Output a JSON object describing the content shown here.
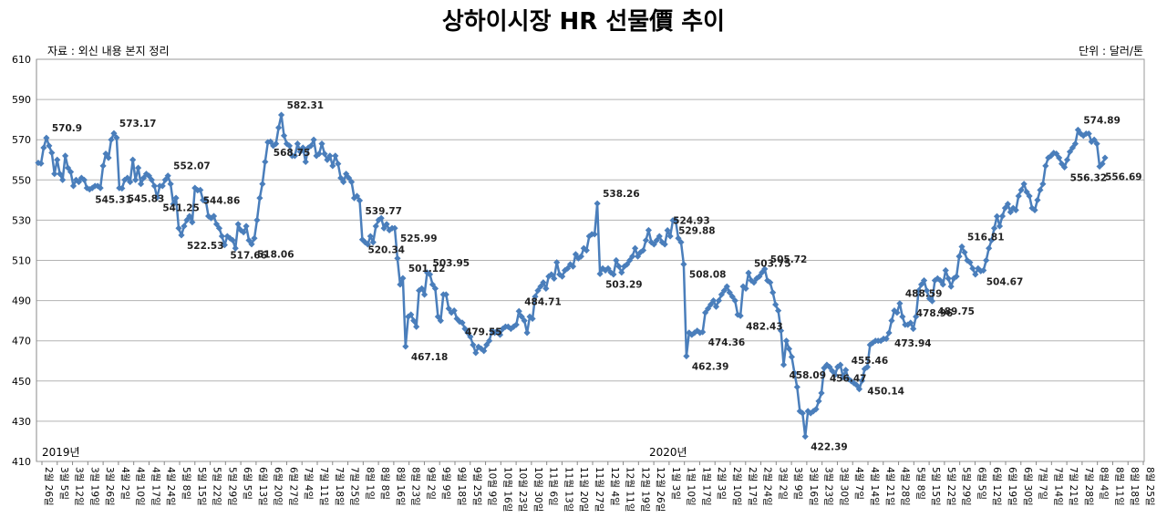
{
  "chart_data": {
    "type": "line",
    "title": "상하이시장 HR 선물價 추이",
    "subtitle": "자료 : 외신 내용 본지 정리",
    "unit": "단위 : 달러/톤",
    "year_labels": [
      "2019년",
      "2020년"
    ],
    "ylim": [
      410,
      610
    ],
    "yticks": [
      410,
      430,
      450,
      470,
      490,
      510,
      530,
      550,
      570,
      590,
      610
    ],
    "grid": true,
    "series_color": "#4a7ebb",
    "x_labels": [
      "2월 26일",
      "3월 5일",
      "3월 12일",
      "3월 19일",
      "3월 26일",
      "4월 2일",
      "4월 10일",
      "4월 17일",
      "4월 24일",
      "5월 8일",
      "5월 15일",
      "5월 22일",
      "5월 29일",
      "6월 5일",
      "6월 13일",
      "6월 20일",
      "6월 27일",
      "7월 4일",
      "7월 11일",
      "7월 18일",
      "7월 25일",
      "8월 1일",
      "8월 8일",
      "8월 16일",
      "8월 23일",
      "9월 2일",
      "9월 9일",
      "9월 18일",
      "9월 25일",
      "10월 9일",
      "10월 16일",
      "10월 23일",
      "10월 30일",
      "11월 6일",
      "11월 13일",
      "11월 20일",
      "11월 27일",
      "12월 4일",
      "12월 11일",
      "12월 19일",
      "12월 26일",
      "1월 3일",
      "1월 10일",
      "1월 17일",
      "2월 3일",
      "2월 10일",
      "2월 17일",
      "2월 24일",
      "3월 2일",
      "3월 9일",
      "3월 16일",
      "3월 23일",
      "3월 30일",
      "4월 7일",
      "4월 14일",
      "4월 21일",
      "4월 28일",
      "5월 8일",
      "5월 15일",
      "5월 22일",
      "5월 29일",
      "6월 5일",
      "6월 12일",
      "6월 19일",
      "6월 30일",
      "7월 7일",
      "7월 14일",
      "7월 21일",
      "7월 28일",
      "8월 4일",
      "8월 11일",
      "8월 18일",
      "8월 25일"
    ],
    "values": [
      558.5,
      558.2,
      566,
      570.9,
      567,
      563.5,
      553,
      560,
      553,
      550,
      562,
      556,
      554,
      547,
      550,
      549,
      551,
      550,
      546,
      545.31,
      546,
      547,
      547,
      546,
      557,
      563,
      561,
      570,
      573.17,
      571,
      546,
      545.83,
      550,
      551,
      549,
      560,
      550,
      556,
      548,
      551,
      553,
      552,
      550,
      547,
      541.25,
      547,
      547,
      550,
      552.07,
      548,
      538,
      541,
      526,
      522.53,
      527,
      530,
      532,
      529,
      546,
      544.86,
      545,
      540,
      540,
      532,
      531,
      532,
      528,
      526,
      522,
      517.66,
      522,
      521,
      520,
      516,
      528,
      525,
      524,
      527,
      520,
      518.06,
      521,
      530,
      541,
      548,
      559,
      568.75,
      569,
      567,
      568,
      576,
      582.31,
      572,
      568,
      567,
      562,
      562,
      568,
      564,
      566,
      559,
      566,
      567,
      570,
      562,
      563,
      568,
      563,
      560,
      562,
      557,
      562,
      558,
      551,
      549,
      553,
      551,
      549,
      541,
      542,
      539.77,
      520.34,
      519,
      518,
      522,
      519,
      527,
      530,
      531,
      526,
      528,
      525,
      526,
      525.99,
      511,
      498,
      501.12,
      467.18,
      482,
      483,
      480,
      477,
      495,
      496,
      493,
      503.95,
      503,
      498,
      496,
      482,
      480,
      493,
      493,
      486,
      484,
      485,
      481,
      479.55,
      479,
      476,
      474,
      472,
      468,
      464,
      467,
      466.1,
      465,
      468,
      470,
      475,
      474,
      475,
      473,
      476,
      477,
      477,
      476,
      477,
      478,
      484.71,
      482,
      480,
      474,
      482,
      481,
      492,
      495,
      497,
      499,
      496,
      502,
      503,
      501,
      509,
      503,
      502,
      505,
      506,
      508,
      507,
      513,
      511,
      512,
      516,
      515,
      522,
      523,
      523,
      538.26,
      503.29,
      506,
      505,
      506,
      504,
      503,
      510,
      507,
      504,
      507,
      508,
      510,
      512,
      516,
      512,
      514,
      515,
      520,
      525,
      519,
      518,
      520,
      522,
      519,
      518,
      524.93,
      522,
      529.88,
      530,
      521,
      519,
      508.08,
      462.39,
      474,
      473,
      474,
      475,
      474,
      474.36,
      484,
      486,
      488,
      490,
      487,
      490,
      493,
      495,
      497,
      494,
      492,
      490,
      483,
      482.43,
      497,
      496,
      503.75,
      500,
      499,
      501,
      502,
      504,
      505.72,
      500,
      499,
      494,
      488,
      485,
      475,
      458.09,
      470,
      466,
      462,
      454,
      447,
      435,
      434,
      422.39,
      435,
      434,
      435,
      436,
      440,
      444,
      456.47,
      458,
      457,
      455,
      453,
      457,
      458,
      452,
      455.46,
      451,
      450,
      449,
      448,
      446,
      450.14,
      456,
      457,
      468,
      469,
      470,
      470,
      470,
      471,
      471,
      473.94,
      480,
      485,
      484,
      488.59,
      482,
      478,
      478,
      478.96,
      476,
      482,
      495,
      498,
      500,
      495,
      491,
      489.75,
      500,
      501,
      500,
      498,
      505,
      501,
      497,
      501,
      502,
      512,
      516.81,
      514,
      510,
      509,
      506,
      503,
      506,
      504.67,
      505,
      510,
      516,
      520,
      526,
      531.9,
      527,
      532,
      536,
      538,
      534,
      536,
      535,
      542,
      545,
      548,
      544,
      542,
      536,
      535,
      540,
      545,
      548,
      557,
      561,
      562,
      563.4,
      563,
      561,
      558,
      556.32,
      560,
      564,
      566,
      568,
      574.89,
      573,
      572,
      573,
      573,
      569,
      570,
      568,
      556.69,
      558,
      561
    ]
  }
}
